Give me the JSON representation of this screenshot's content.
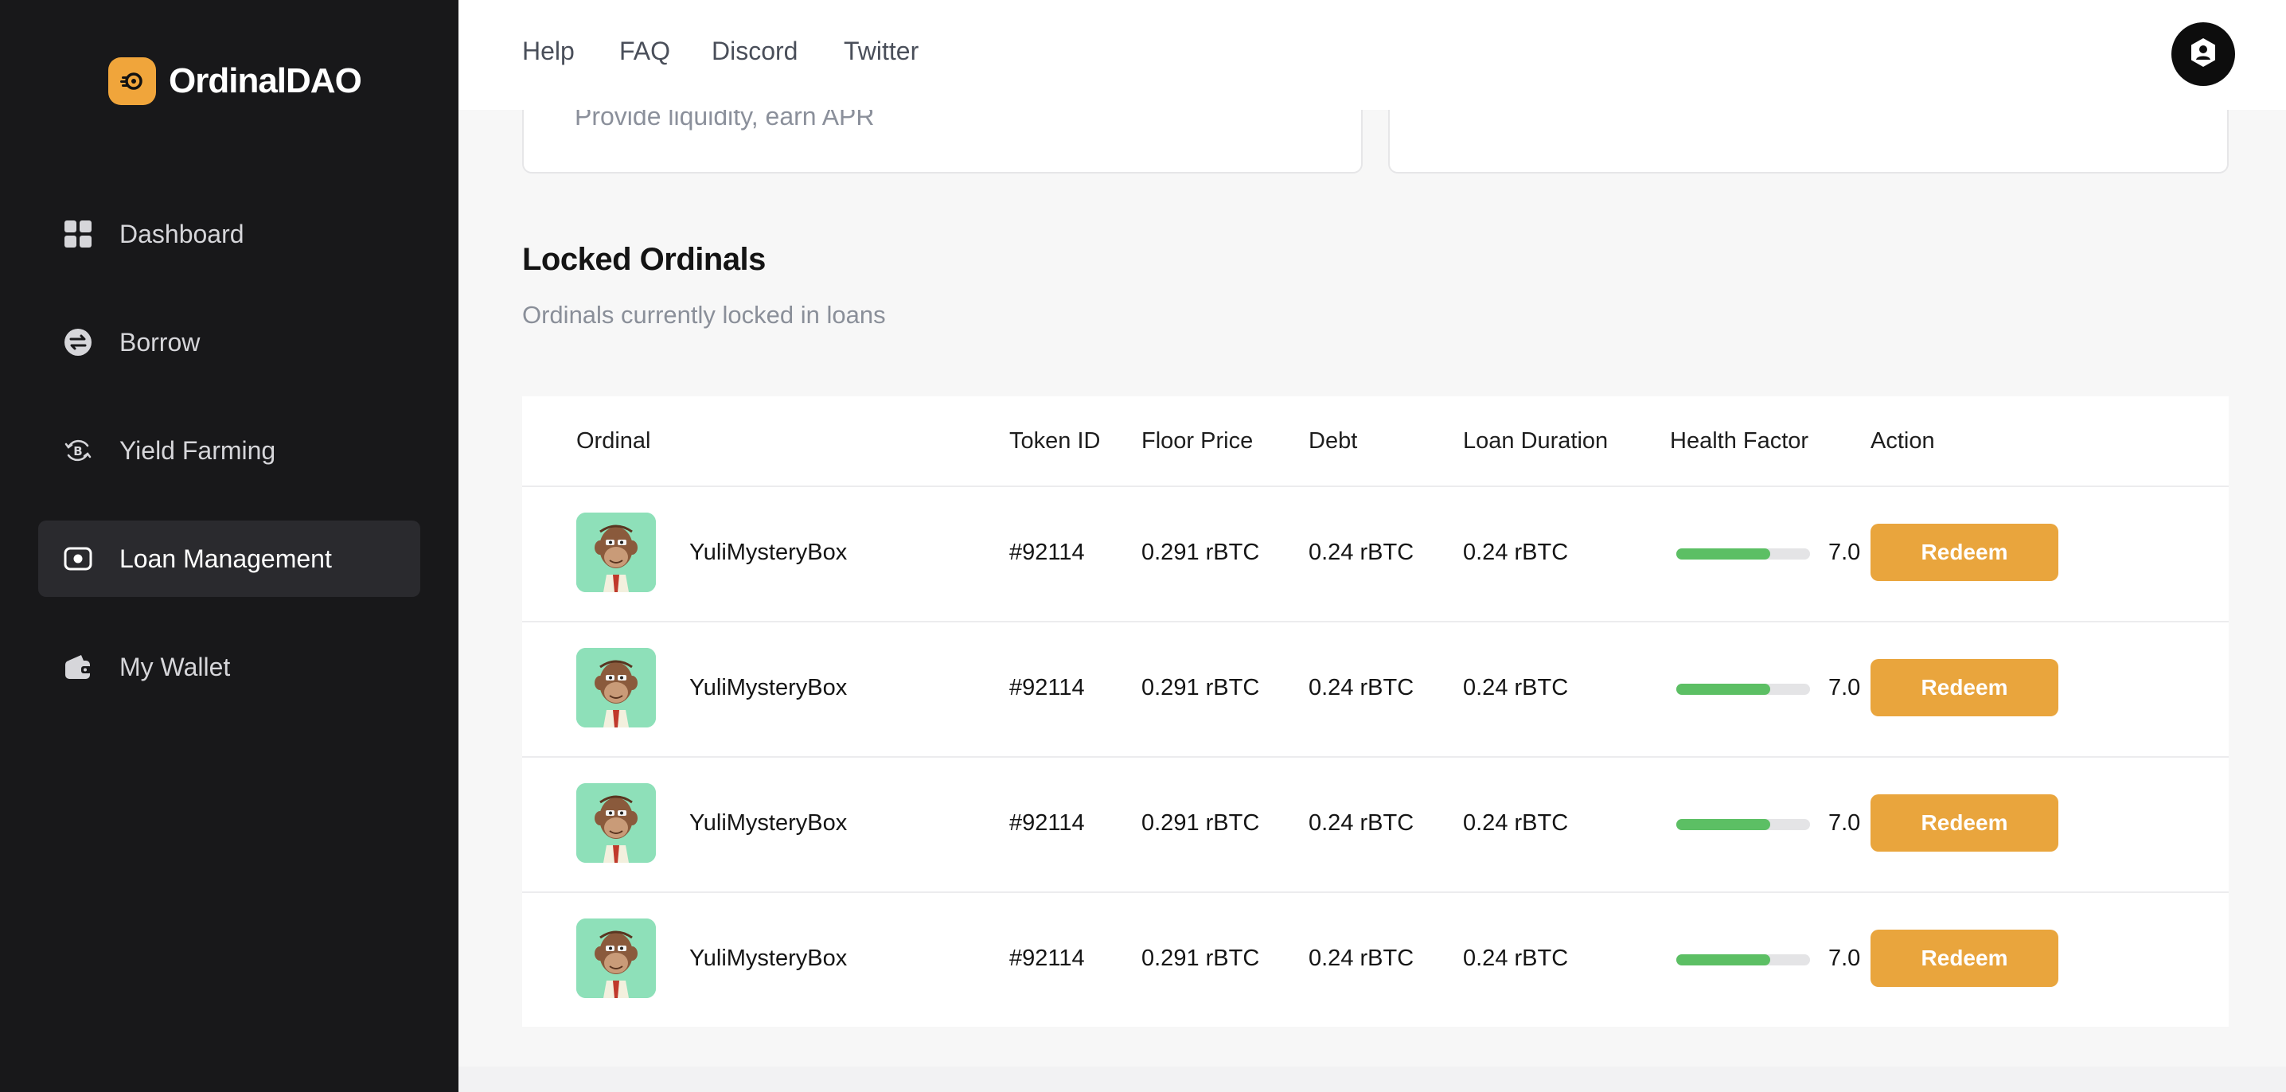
{
  "brand": {
    "name": "OrdinalDAO"
  },
  "sidebar": {
    "items": [
      {
        "label": "Dashboard",
        "icon": "grid-icon",
        "active": false
      },
      {
        "label": "Borrow",
        "icon": "exchange-icon",
        "active": false
      },
      {
        "label": "Yield Farming",
        "icon": "bitcoin-cycle-icon",
        "active": false
      },
      {
        "label": "Loan Management",
        "icon": "camera-icon",
        "active": true
      },
      {
        "label": "My Wallet",
        "icon": "wallet-icon",
        "active": false
      }
    ]
  },
  "topnav": {
    "links": [
      "Help",
      "FAQ",
      "Discord",
      "Twitter"
    ]
  },
  "cards": {
    "left_subtitle": "Provide liquidity, earn APR"
  },
  "section": {
    "title": "Locked Ordinals",
    "subtitle": "Ordinals currently locked in loans"
  },
  "table": {
    "headers": [
      "Ordinal",
      "Token ID",
      "Floor Price",
      "Debt",
      "Loan Duration",
      "Health Factor",
      "Action"
    ],
    "rows": [
      {
        "name": "YuliMysteryBox",
        "token_id": "#92114",
        "floor_price": "0.291 rBTC",
        "debt": "0.24 rBTC",
        "loan_duration": "0.24 rBTC",
        "health_factor": "7.0",
        "health_fraction": 0.7,
        "action": "Redeem"
      },
      {
        "name": "YuliMysteryBox",
        "token_id": "#92114",
        "floor_price": "0.291 rBTC",
        "debt": "0.24 rBTC",
        "loan_duration": "0.24 rBTC",
        "health_factor": "7.0",
        "health_fraction": 0.7,
        "action": "Redeem"
      },
      {
        "name": "YuliMysteryBox",
        "token_id": "#92114",
        "floor_price": "0.291 rBTC",
        "debt": "0.24 rBTC",
        "loan_duration": "0.24 rBTC",
        "health_factor": "7.0",
        "health_fraction": 0.7,
        "action": "Redeem"
      },
      {
        "name": "YuliMysteryBox",
        "token_id": "#92114",
        "floor_price": "0.291 rBTC",
        "debt": "0.24 rBTC",
        "loan_duration": "0.24 rBTC",
        "health_factor": "7.0",
        "health_fraction": 0.7,
        "action": "Redeem"
      }
    ]
  },
  "colors": {
    "accent": "#e9a53d",
    "sidebar_bg": "#18181a",
    "health_fill": "#5cbf64"
  }
}
